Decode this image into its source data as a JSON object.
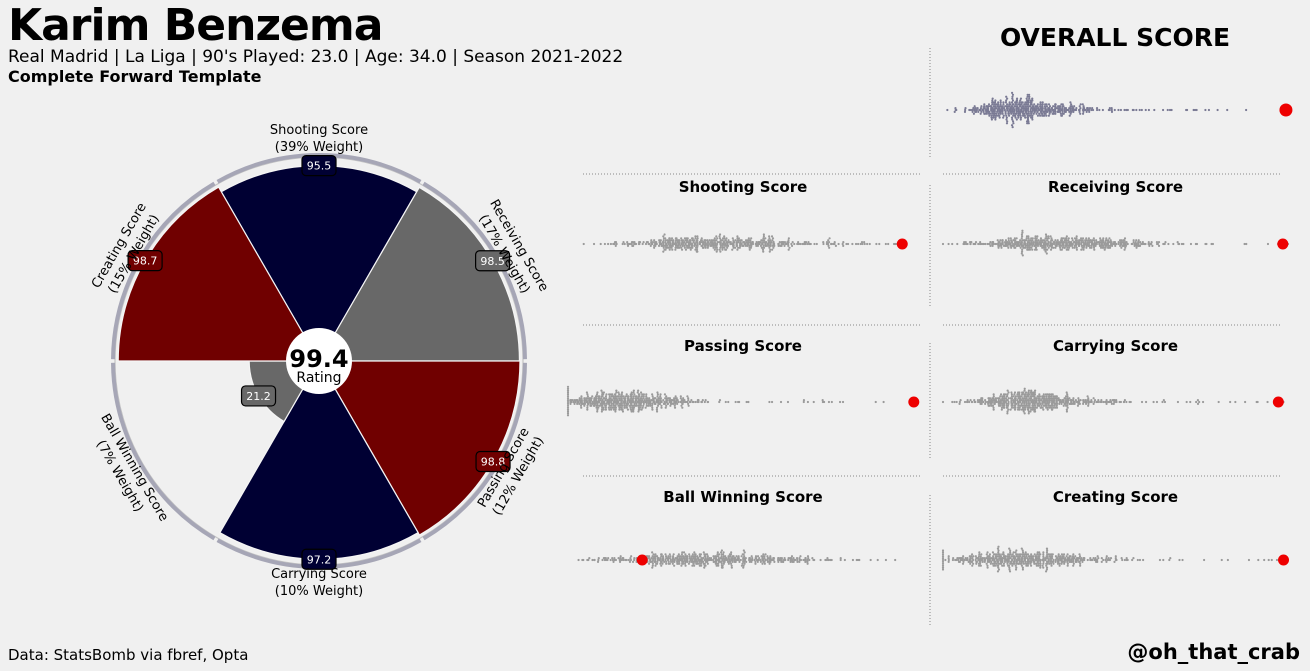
{
  "header": {
    "player_name": "Karim Benzema",
    "subtitle": "Real Madrid  | La Liga | 90's Played: 23.0 | Age: 34.0 | Season 2021-2022",
    "template": "Complete Forward Template"
  },
  "footer": {
    "source": "Data: StatsBomb via fbref, Opta",
    "handle": "@oh_that_crab"
  },
  "overall_title": "OVERALL SCORE",
  "colors": {
    "background": "#f0f0f0",
    "navy": "#000033",
    "maroon": "#700000",
    "dark_gray": "#686868",
    "light_gray": "#c6c6c6",
    "dot_overall": "#7a7a94",
    "dot_gray": "#9a9a9a",
    "highlight": "#ee0000"
  },
  "chart_data": [
    {
      "type": "pie",
      "subtype": "polar-bar",
      "center_value": "99.4",
      "center_label": "Rating",
      "max_value": 100,
      "segments": [
        {
          "label": "Shooting Score",
          "weight": "(39% Weight)",
          "value": 95.5,
          "value_label": "95.5",
          "color": "#000033"
        },
        {
          "label": "Receiving Score",
          "weight": "(17% Weight)",
          "value": 98.5,
          "value_label": "98.5",
          "color": "#686868"
        },
        {
          "label": "Passing Score",
          "weight": "(12% Weight)",
          "value": 98.8,
          "value_label": "98.8",
          "color": "#700000"
        },
        {
          "label": "Carrying Score",
          "weight": "(10% Weight)",
          "value": 97.2,
          "value_label": "97.2",
          "color": "#000033"
        },
        {
          "label": "Ball Winning Score",
          "weight": "(7% Weight)",
          "value": 21.2,
          "value_label": "21.2",
          "color": "#686868"
        },
        {
          "label": "Creating Score",
          "weight": "(15% Weight)",
          "value": 98.7,
          "value_label": "98.7",
          "color": "#700000"
        }
      ]
    },
    {
      "type": "scatter",
      "subtype": "swarm",
      "title": "OVERALL SCORE",
      "xlim": [
        0,
        100
      ],
      "highlight_value": 99.4,
      "n_points": 520,
      "distribution": {
        "mode": 20,
        "spread": 11,
        "skew": "right"
      }
    },
    {
      "type": "scatter",
      "subtype": "swarm",
      "title": "Shooting Score",
      "xlim": [
        0,
        100
      ],
      "highlight_value": 95.5,
      "n_points": 520,
      "distribution": {
        "mode": 36,
        "spread": 18,
        "skew": "right"
      }
    },
    {
      "type": "scatter",
      "subtype": "swarm",
      "title": "Receiving Score",
      "xlim": [
        0,
        100
      ],
      "highlight_value": 98.5,
      "n_points": 520,
      "distribution": {
        "mode": 28,
        "spread": 17,
        "skew": "right"
      }
    },
    {
      "type": "scatter",
      "subtype": "swarm",
      "title": "Passing Score",
      "xlim": [
        0,
        100
      ],
      "highlight_value": 98.8,
      "n_points": 520,
      "distribution": {
        "mode": 12,
        "spread": 12,
        "skew": "right"
      }
    },
    {
      "type": "scatter",
      "subtype": "swarm",
      "title": "Carrying Score",
      "xlim": [
        0,
        100
      ],
      "highlight_value": 97.2,
      "n_points": 520,
      "distribution": {
        "mode": 22,
        "spread": 12,
        "skew": "right"
      }
    },
    {
      "type": "scatter",
      "subtype": "swarm",
      "title": "Ball Winning Score",
      "xlim": [
        0,
        100
      ],
      "highlight_value": 21.2,
      "n_points": 520,
      "distribution": {
        "mode": 32,
        "spread": 18,
        "skew": "right"
      }
    },
    {
      "type": "scatter",
      "subtype": "swarm",
      "title": "Creating Score",
      "xlim": [
        0,
        100
      ],
      "highlight_value": 98.7,
      "n_points": 520,
      "distribution": {
        "mode": 18,
        "spread": 14,
        "skew": "right"
      }
    }
  ]
}
